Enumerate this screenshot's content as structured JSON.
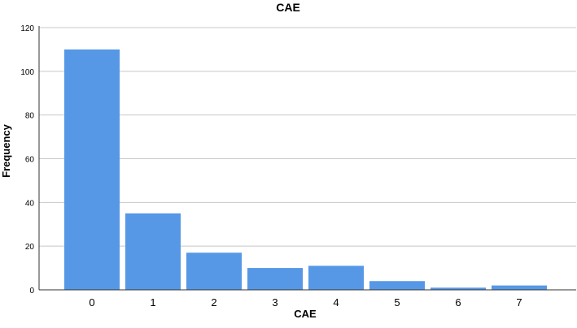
{
  "chart_data": {
    "type": "bar",
    "title": "CAE",
    "xlabel": "CAE",
    "ylabel": "Frequency",
    "categories": [
      "0",
      "1",
      "2",
      "3",
      "4",
      "5",
      "6",
      "7"
    ],
    "values": [
      110,
      35,
      17,
      10,
      11,
      4,
      1,
      2
    ],
    "ylim": [
      0,
      120
    ],
    "yticks": [
      0,
      20,
      40,
      60,
      80,
      100,
      120
    ],
    "grid": true,
    "legend": "none",
    "colors": {
      "bar": "#5698e6",
      "grid": "#c8c8c8",
      "axis": "#333333"
    }
  }
}
